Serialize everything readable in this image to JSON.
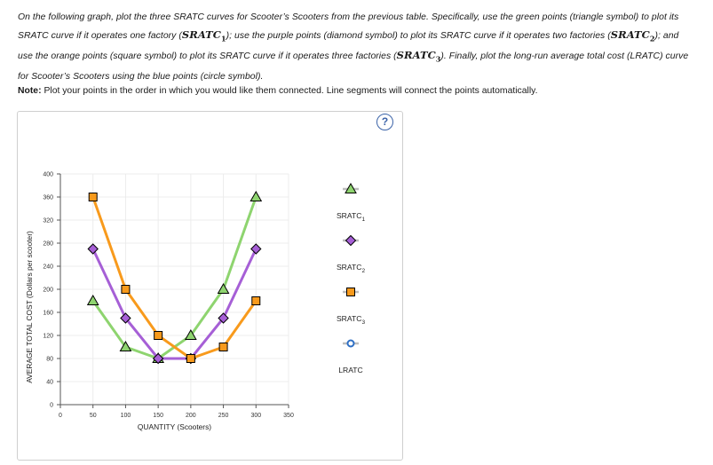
{
  "instructions": {
    "part1": "On the following graph, plot the three SRATC curves for Scooter’s Scooters from the previous table. Specifically, use the green points (triangle symbol) to plot its SRATC curve if it operates one factory (",
    "m1": "SRATC",
    "sub1": "1",
    "part2": "); use the purple points (diamond symbol) to plot its SRATC curve if it operates two factories (",
    "m2": "SRATC",
    "sub2": "2",
    "part3": "); and use the orange points (square symbol) to plot its SRATC curve if it operates three factories (",
    "m3": "SRATC",
    "sub3": "3",
    "part4": "). Finally, plot the long-run average total cost (LRATC) curve for Scooter’s Scooters using the blue points (circle symbol)."
  },
  "note": {
    "label": "Note:",
    "text": " Plot your points in the order in which you would like them connected. Line segments will connect the points automatically."
  },
  "help_label": "?",
  "chart_data": {
    "type": "line",
    "xlabel": "QUANTITY (Scooters)",
    "ylabel": "AVERAGE TOTAL COST (Dollars per scooter)",
    "xlim": [
      0,
      350
    ],
    "ylim": [
      0,
      400
    ],
    "x_ticks": [
      0,
      50,
      100,
      150,
      200,
      250,
      300,
      350
    ],
    "y_ticks": [
      0,
      40,
      80,
      120,
      160,
      200,
      240,
      280,
      320,
      360,
      400
    ],
    "grid": true,
    "legend_position": "right",
    "series": [
      {
        "name": "SRATC",
        "name_sub": "1",
        "color": "#8ed46f",
        "marker": "triangle",
        "points": [
          [
            50,
            180
          ],
          [
            100,
            100
          ],
          [
            150,
            80
          ],
          [
            200,
            120
          ],
          [
            250,
            200
          ],
          [
            300,
            360
          ]
        ]
      },
      {
        "name": "SRATC",
        "name_sub": "2",
        "color": "#a65fd6",
        "marker": "diamond",
        "points": [
          [
            50,
            270
          ],
          [
            100,
            150
          ],
          [
            150,
            80
          ],
          [
            200,
            80
          ],
          [
            250,
            150
          ],
          [
            300,
            270
          ]
        ]
      },
      {
        "name": "SRATC",
        "name_sub": "3",
        "color": "#f89a1c",
        "marker": "square",
        "points": [
          [
            50,
            360
          ],
          [
            100,
            200
          ],
          [
            150,
            120
          ],
          [
            200,
            80
          ],
          [
            250,
            100
          ],
          [
            300,
            180
          ]
        ]
      },
      {
        "name": "LRATC",
        "name_sub": "",
        "color": "#2e6fc4",
        "marker": "circle",
        "points": []
      }
    ]
  }
}
